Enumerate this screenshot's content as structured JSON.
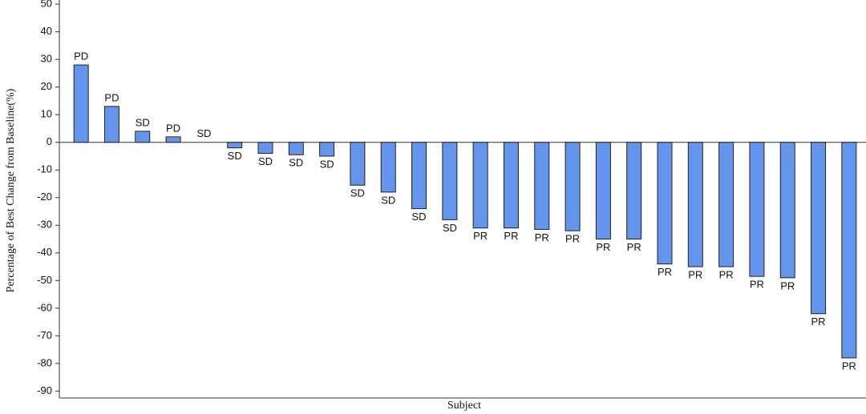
{
  "chart_data": {
    "type": "bar",
    "y_label": "Percentage of Best Change from Baseline(%)",
    "x_label": "Subject",
    "categories": [
      null,
      null,
      null,
      null,
      null,
      null,
      null,
      null,
      null,
      null,
      null,
      null,
      null,
      null,
      null,
      null,
      null,
      null,
      null,
      null,
      null,
      null,
      null,
      null,
      null,
      null
    ],
    "values": [
      28,
      13,
      4,
      2,
      0,
      -2,
      -4,
      -4.5,
      -5,
      -15.5,
      -18,
      -24,
      -28,
      -31,
      -31,
      -31.5,
      -32,
      -35,
      -35,
      -44,
      -45,
      -45,
      -48.5,
      -49,
      -62,
      -78
    ],
    "labels": [
      "PD",
      "PD",
      "SD",
      "PD",
      "SD",
      "SD",
      "SD",
      "SD",
      "SD",
      "SD",
      "SD",
      "SD",
      "SD",
      "PR",
      "PR",
      "PR",
      "PR",
      "PR",
      "PR",
      "PR",
      "PR",
      "PR",
      "PR",
      "PR",
      "PR",
      "PR"
    ],
    "color": "#6495ed",
    "ylim": [
      -92.5,
      51.5
    ],
    "yticks": [
      -90,
      -80,
      -70,
      -60,
      -50,
      -40,
      -30,
      -20,
      -10,
      0,
      10,
      20,
      30,
      40,
      50
    ],
    "grid": false
  }
}
